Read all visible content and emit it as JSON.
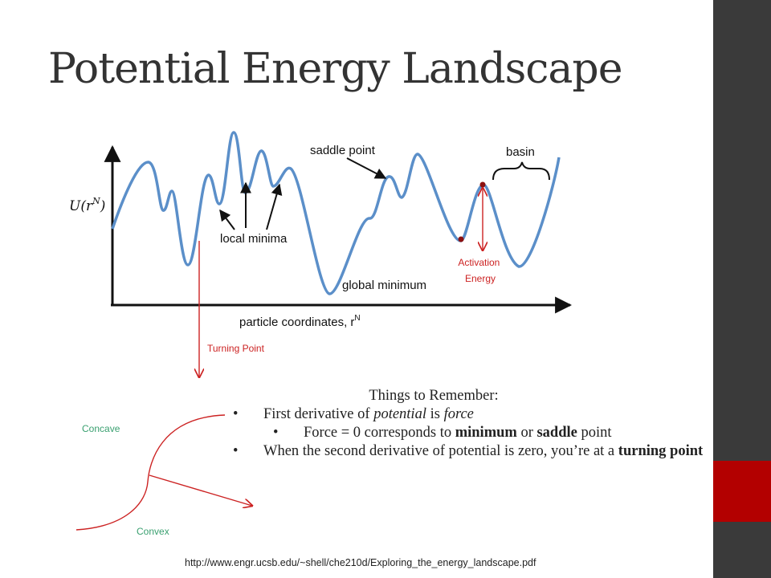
{
  "slide": {
    "title": "Potential Energy Landscape",
    "source_url": "http://www.engr.ucsb.edu/~shell/che210d/Exploring_the_energy_landscape.pdf"
  },
  "figure": {
    "y_axis_label_main": "U(r",
    "y_axis_label_sup": "N",
    "y_axis_label_close": ")",
    "x_axis_label_main": "particle coordinates, r",
    "x_axis_label_sup": "N",
    "saddle_point_label": "saddle point",
    "basin_label": "basin",
    "local_minima_label": "local minima",
    "global_minimum_label": "global minimum",
    "activation_energy_line1": "Activation",
    "activation_energy_line2": "Energy",
    "turning_point_label": "Turning Point",
    "concave_label": "Concave",
    "convex_label": "Convex"
  },
  "notes": {
    "heading": "Things to Remember:",
    "b1_pre": "First derivative of ",
    "b1_em1": "potential",
    "b1_mid": " is ",
    "b1_em2": "force",
    "b2_pre": "Force = 0 corresponds to ",
    "b2_strong1": "minimum",
    "b2_mid": " or ",
    "b2_strong2": "saddle",
    "b2_post": " point",
    "b3_pre": "When the second derivative of potential is zero, you’re at a ",
    "b3_strong": "turning point"
  },
  "colors": {
    "curve": "#5b8fc9",
    "annotation_red": "#cc2222",
    "convex_concave_green": "#3aa070"
  }
}
